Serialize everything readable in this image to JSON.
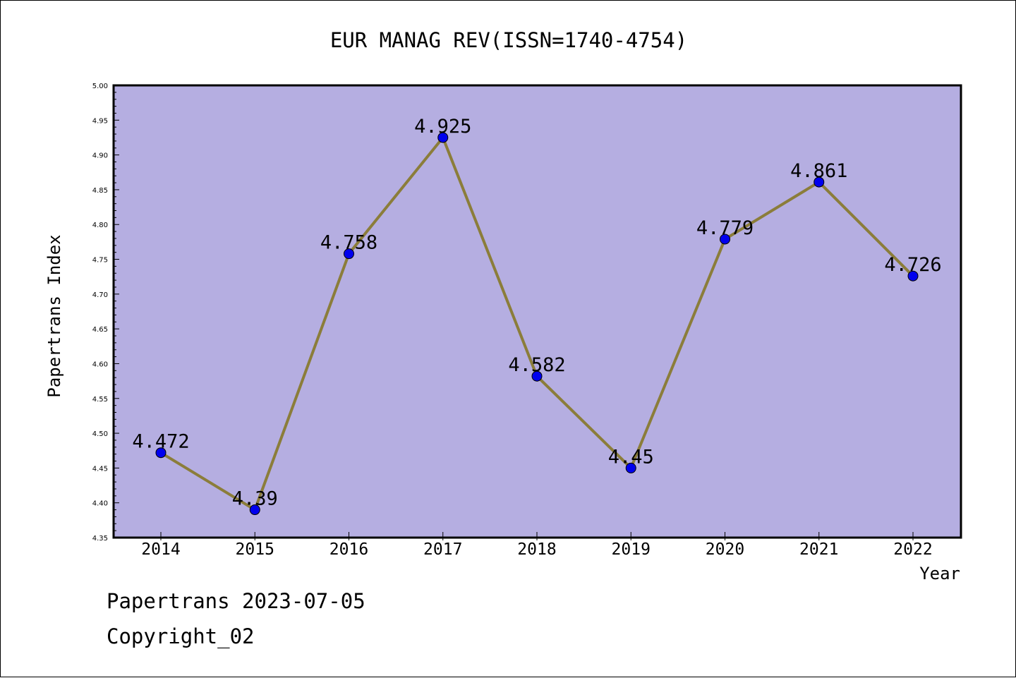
{
  "chart_data": {
    "type": "line",
    "title": "EUR MANAG REV(ISSN=1740-4754)",
    "xlabel": "Year",
    "ylabel": "Papertrans Index",
    "x": [
      "2014",
      "2015",
      "2016",
      "2017",
      "2018",
      "2019",
      "2020",
      "2021",
      "2022"
    ],
    "series": [
      {
        "values": [
          4.472,
          4.39,
          4.758,
          4.925,
          4.582,
          4.45,
          4.779,
          4.861,
          4.726
        ],
        "labels": [
          "4.472",
          "4.39",
          "4.758",
          "4.925",
          "4.582",
          "4.45",
          "4.779",
          "4.861",
          "4.726"
        ],
        "line_color": "#8b7d3a",
        "marker_color": "#0000ee"
      }
    ],
    "ylim": [
      4.35,
      5.0
    ],
    "yticks": [
      "4.35",
      "4.40",
      "4.45",
      "4.50",
      "4.55",
      "4.60",
      "4.65",
      "4.70",
      "4.75",
      "4.80",
      "4.85",
      "4.90",
      "4.95",
      "5.00"
    ],
    "plot_background": "#b5aee1",
    "grid": false,
    "legend": "none"
  },
  "footer": {
    "line1": "Papertrans 2023-07-05",
    "line2": "Copyright_02"
  }
}
